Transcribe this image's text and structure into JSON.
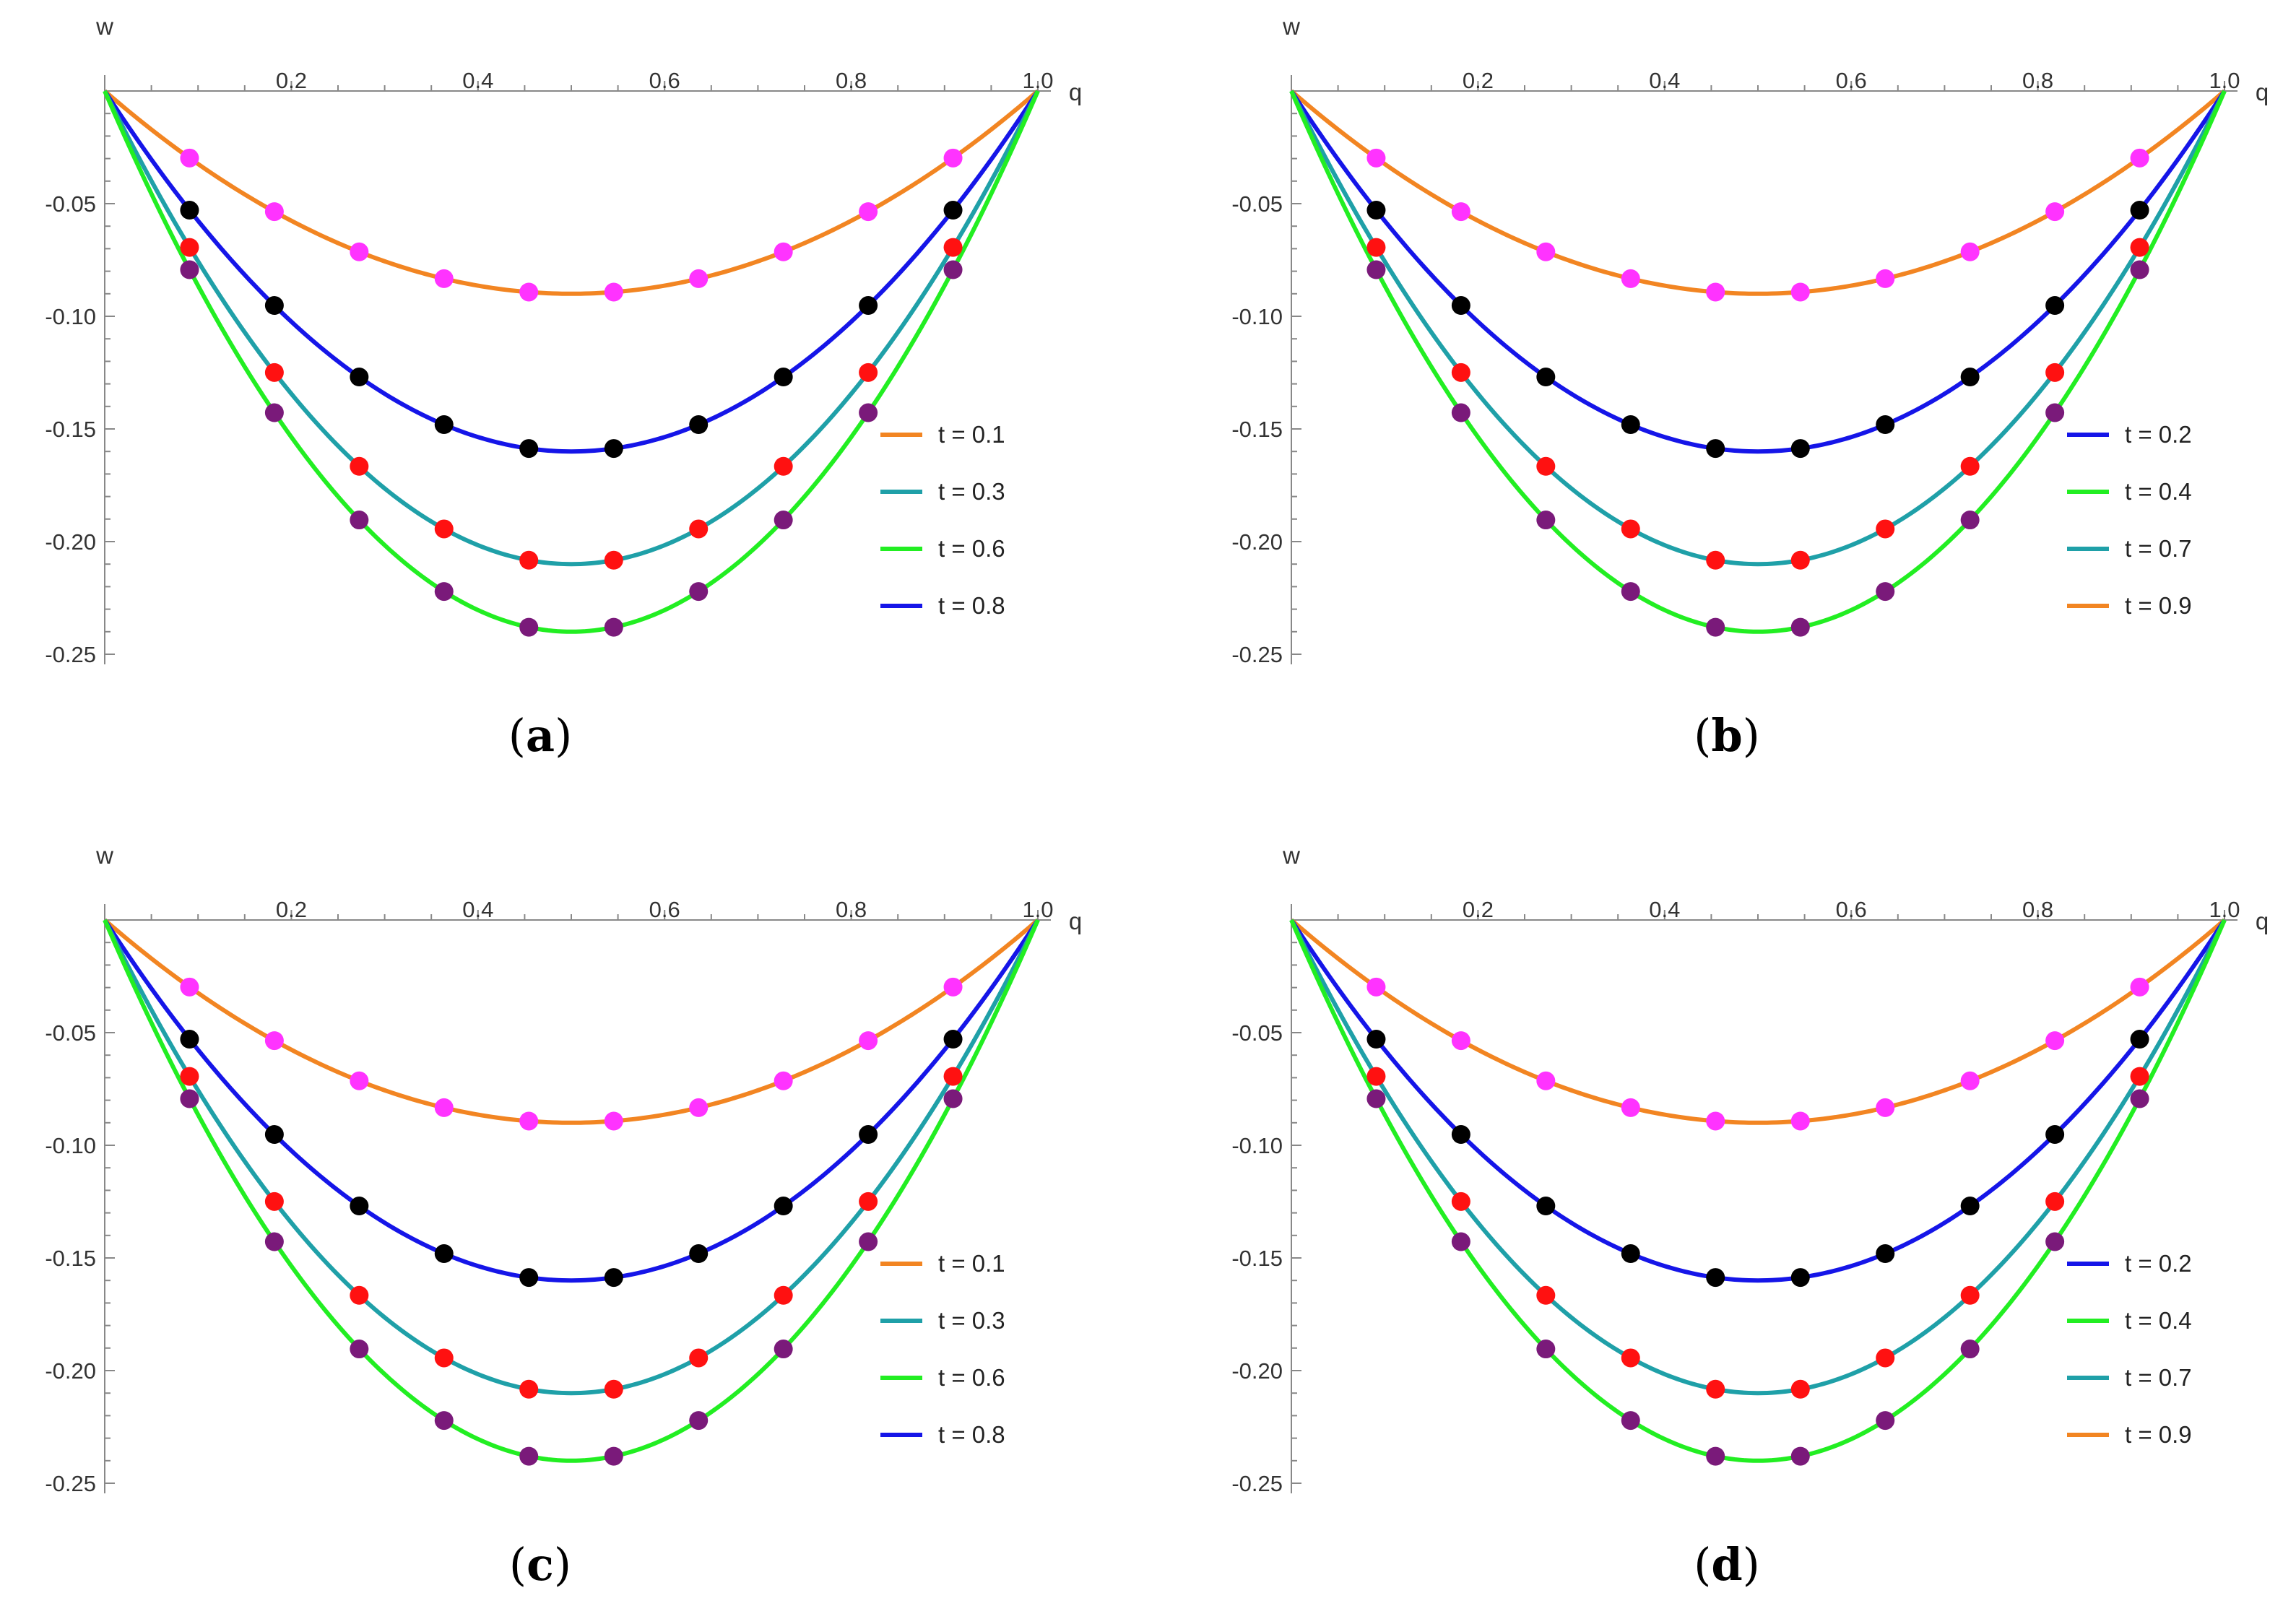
{
  "figure": {
    "panels": [
      {
        "id": "a",
        "caption": "(",
        "caption_letter": "a",
        "caption_close": ")"
      },
      {
        "id": "b",
        "caption": "(",
        "caption_letter": "b",
        "caption_close": ")"
      },
      {
        "id": "c",
        "caption": "(",
        "caption_letter": "c",
        "caption_close": ")"
      },
      {
        "id": "d",
        "caption": "(",
        "caption_letter": "d",
        "caption_close": ")"
      }
    ]
  },
  "colors": {
    "orange": "#F28522",
    "teal": "#1FA0A8",
    "green": "#22EE22",
    "blue": "#1515E8",
    "magenta": "#FF33FF",
    "black": "#000000",
    "red": "#FF1111",
    "purple": "#7A1A7A",
    "axis": "#888888"
  },
  "chart_data": [
    {
      "panel": "a",
      "type": "line",
      "xlabel": "q",
      "ylabel": "w",
      "xlim": [
        0,
        1.0
      ],
      "ylim": [
        -0.25,
        0
      ],
      "xticks": [
        {
          "v": 0.2,
          "label": "0.2"
        },
        {
          "v": 0.4,
          "label": "0.4"
        },
        {
          "v": 0.6,
          "label": "0.6"
        },
        {
          "v": 0.8,
          "label": "0.8"
        },
        {
          "v": 1.0,
          "label": "1.0"
        }
      ],
      "yticks": [
        {
          "v": -0.05,
          "label": "-0.05"
        },
        {
          "v": -0.1,
          "label": "-0.10"
        },
        {
          "v": -0.15,
          "label": "-0.15"
        },
        {
          "v": -0.2,
          "label": "-0.20"
        },
        {
          "v": -0.25,
          "label": "-0.25"
        }
      ],
      "legend": [
        {
          "label": "t = 0.1",
          "color": "orange"
        },
        {
          "label": "t = 0.3",
          "color": "teal"
        },
        {
          "label": "t = 0.6",
          "color": "green"
        },
        {
          "label": "t = 0.8",
          "color": "blue"
        }
      ],
      "curve_note": "w(q) = -a * 4q(1-q)",
      "series": [
        {
          "name": "t = 0.1",
          "color": "orange",
          "amplitude": 0.09,
          "marker_color": "magenta"
        },
        {
          "name": "t = 0.8",
          "color": "blue",
          "amplitude": 0.16,
          "marker_color": "black"
        },
        {
          "name": "t = 0.3",
          "color": "teal",
          "amplitude": 0.21,
          "marker_color": "red"
        },
        {
          "name": "t = 0.6",
          "color": "green",
          "amplitude": 0.24,
          "marker_color": "purple"
        }
      ],
      "marker_q": [
        0.0909,
        0.1818,
        0.2727,
        0.3636,
        0.4545,
        0.5455,
        0.6364,
        0.7273,
        0.8182,
        0.9091
      ]
    },
    {
      "panel": "b",
      "type": "line",
      "xlabel": "q",
      "ylabel": "w",
      "xlim": [
        0,
        1.0
      ],
      "ylim": [
        -0.25,
        0
      ],
      "xticks": [
        {
          "v": 0.2,
          "label": "0.2"
        },
        {
          "v": 0.4,
          "label": "0.4"
        },
        {
          "v": 0.6,
          "label": "0.6"
        },
        {
          "v": 0.8,
          "label": "0.8"
        },
        {
          "v": 1.0,
          "label": "1.0"
        }
      ],
      "yticks": [
        {
          "v": -0.05,
          "label": "-0.05"
        },
        {
          "v": -0.1,
          "label": "-0.10"
        },
        {
          "v": -0.15,
          "label": "-0.15"
        },
        {
          "v": -0.2,
          "label": "-0.20"
        },
        {
          "v": -0.25,
          "label": "-0.25"
        }
      ],
      "legend": [
        {
          "label": "t = 0.2",
          "color": "blue"
        },
        {
          "label": "t = 0.4",
          "color": "green"
        },
        {
          "label": "t = 0.7",
          "color": "teal"
        },
        {
          "label": "t = 0.9",
          "color": "orange"
        }
      ],
      "curve_note": "w(q) = -a * 4q(1-q)",
      "series": [
        {
          "name": "t = 0.9",
          "color": "orange",
          "amplitude": 0.09,
          "marker_color": "magenta"
        },
        {
          "name": "t = 0.2",
          "color": "blue",
          "amplitude": 0.16,
          "marker_color": "black"
        },
        {
          "name": "t = 0.7",
          "color": "teal",
          "amplitude": 0.21,
          "marker_color": "red"
        },
        {
          "name": "t = 0.4",
          "color": "green",
          "amplitude": 0.24,
          "marker_color": "purple"
        }
      ],
      "marker_q": [
        0.0909,
        0.1818,
        0.2727,
        0.3636,
        0.4545,
        0.5455,
        0.6364,
        0.7273,
        0.8182,
        0.9091
      ]
    },
    {
      "panel": "c",
      "type": "line",
      "xlabel": "q",
      "ylabel": "w",
      "xlim": [
        0,
        1.0
      ],
      "ylim": [
        -0.25,
        0
      ],
      "xticks": [
        {
          "v": 0.2,
          "label": "0.2"
        },
        {
          "v": 0.4,
          "label": "0.4"
        },
        {
          "v": 0.6,
          "label": "0.6"
        },
        {
          "v": 0.8,
          "label": "0.8"
        },
        {
          "v": 1.0,
          "label": "1.0"
        }
      ],
      "yticks": [
        {
          "v": -0.05,
          "label": "-0.05"
        },
        {
          "v": -0.1,
          "label": "-0.10"
        },
        {
          "v": -0.15,
          "label": "-0.15"
        },
        {
          "v": -0.2,
          "label": "-0.20"
        },
        {
          "v": -0.25,
          "label": "-0.25"
        }
      ],
      "legend": [
        {
          "label": "t = 0.1",
          "color": "orange"
        },
        {
          "label": "t = 0.3",
          "color": "teal"
        },
        {
          "label": "t = 0.6",
          "color": "green"
        },
        {
          "label": "t = 0.8",
          "color": "blue"
        }
      ],
      "curve_note": "w(q) = -a * 4q(1-q)",
      "series": [
        {
          "name": "t = 0.1",
          "color": "orange",
          "amplitude": 0.09,
          "marker_color": "magenta"
        },
        {
          "name": "t = 0.8",
          "color": "blue",
          "amplitude": 0.16,
          "marker_color": "black"
        },
        {
          "name": "t = 0.3",
          "color": "teal",
          "amplitude": 0.21,
          "marker_color": "red"
        },
        {
          "name": "t = 0.6",
          "color": "green",
          "amplitude": 0.24,
          "marker_color": "purple"
        }
      ],
      "marker_q": [
        0.0909,
        0.1818,
        0.2727,
        0.3636,
        0.4545,
        0.5455,
        0.6364,
        0.7273,
        0.8182,
        0.9091
      ]
    },
    {
      "panel": "d",
      "type": "line",
      "xlabel": "q",
      "ylabel": "w",
      "xlim": [
        0,
        1.0
      ],
      "ylim": [
        -0.25,
        0
      ],
      "xticks": [
        {
          "v": 0.2,
          "label": "0.2"
        },
        {
          "v": 0.4,
          "label": "0.4"
        },
        {
          "v": 0.6,
          "label": "0.6"
        },
        {
          "v": 0.8,
          "label": "0.8"
        },
        {
          "v": 1.0,
          "label": "1.0"
        }
      ],
      "yticks": [
        {
          "v": -0.05,
          "label": "-0.05"
        },
        {
          "v": -0.1,
          "label": "-0.10"
        },
        {
          "v": -0.15,
          "label": "-0.15"
        },
        {
          "v": -0.2,
          "label": "-0.20"
        },
        {
          "v": -0.25,
          "label": "-0.25"
        }
      ],
      "legend": [
        {
          "label": "t = 0.2",
          "color": "blue"
        },
        {
          "label": "t = 0.4",
          "color": "green"
        },
        {
          "label": "t = 0.7",
          "color": "teal"
        },
        {
          "label": "t = 0.9",
          "color": "orange"
        }
      ],
      "curve_note": "w(q) = -a * 4q(1-q)",
      "series": [
        {
          "name": "t = 0.9",
          "color": "orange",
          "amplitude": 0.09,
          "marker_color": "magenta"
        },
        {
          "name": "t = 0.2",
          "color": "blue",
          "amplitude": 0.16,
          "marker_color": "black"
        },
        {
          "name": "t = 0.7",
          "color": "teal",
          "amplitude": 0.21,
          "marker_color": "red"
        },
        {
          "name": "t = 0.4",
          "color": "green",
          "amplitude": 0.24,
          "marker_color": "purple"
        }
      ],
      "marker_q": [
        0.0909,
        0.1818,
        0.2727,
        0.3636,
        0.4545,
        0.5455,
        0.6364,
        0.7273,
        0.8182,
        0.9091
      ]
    }
  ]
}
